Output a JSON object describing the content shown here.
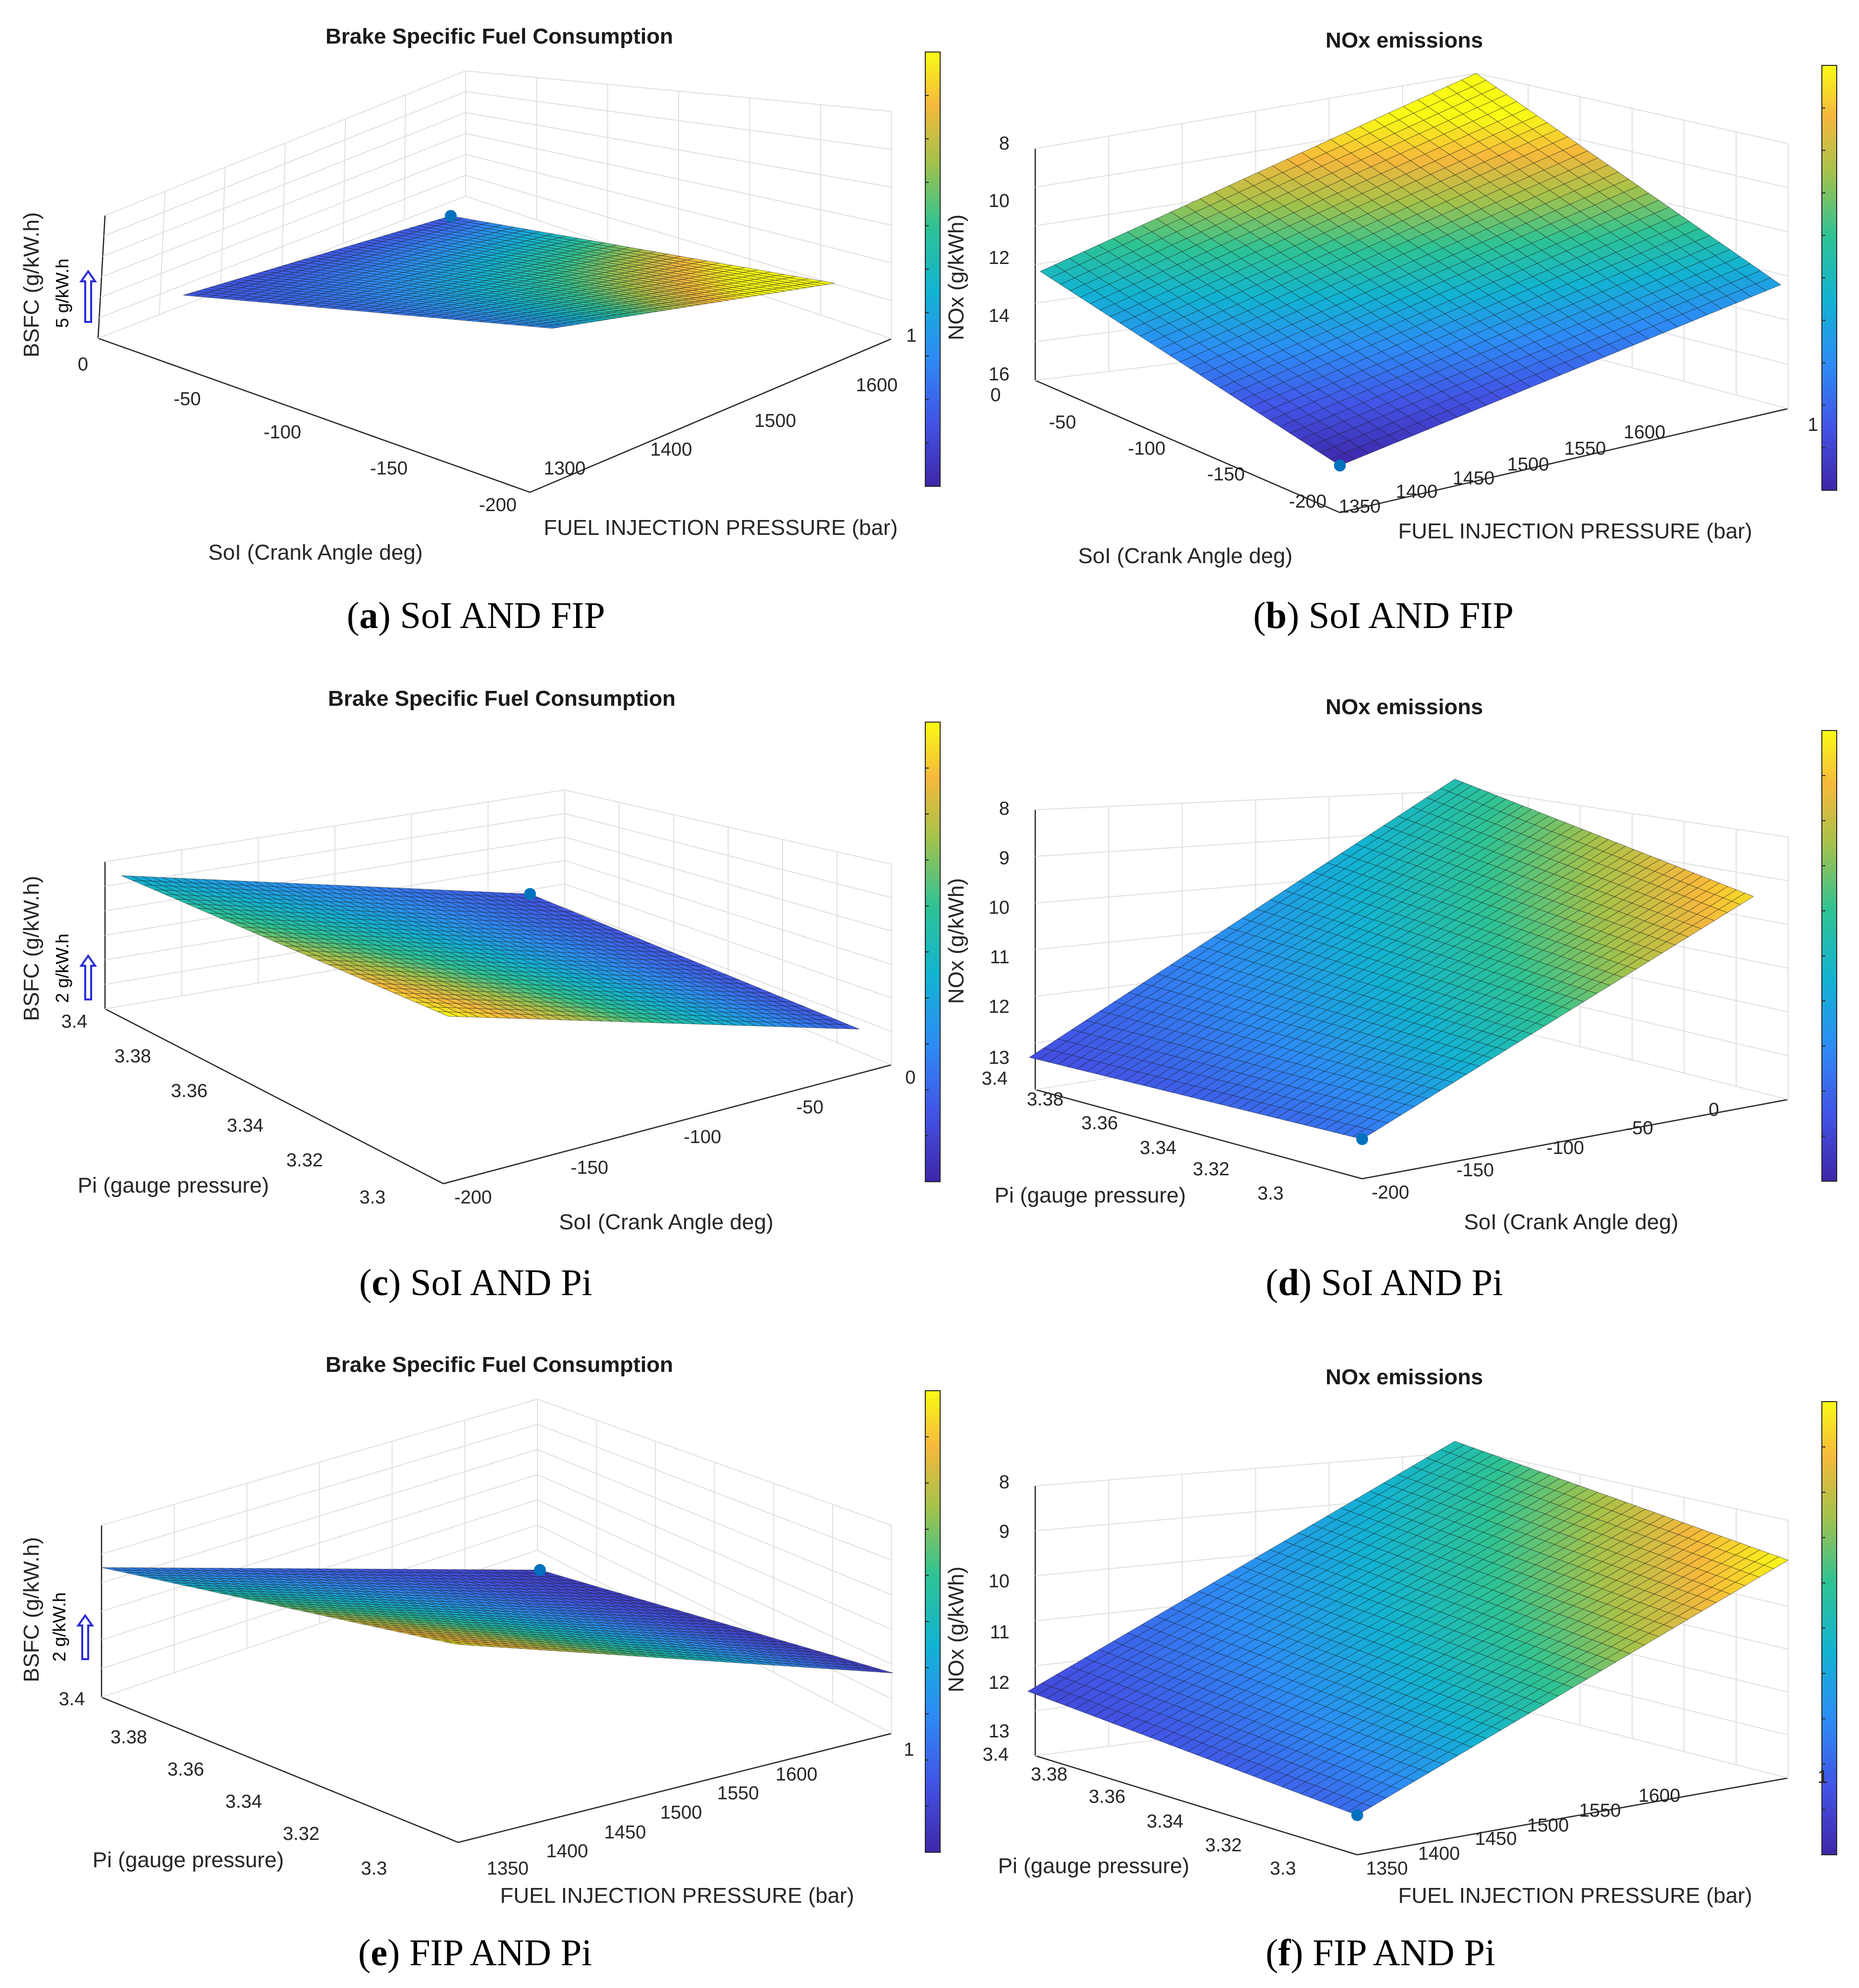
{
  "chart_data": [
    {
      "id": "a",
      "type": "surface3d",
      "title": "Brake Specific Fuel Consumption",
      "xlabel": "SoI (Crank Angle deg)",
      "ylabel": "FUEL INJECTION PRESSURE (bar)",
      "zlabel": "BSFC (g/kW.h)",
      "scale_bar": "5 g/kW.h",
      "z_ticks": [
        "0"
      ],
      "x_ticks": [
        "-50",
        "-100",
        "-150",
        "-200"
      ],
      "y_ticks": [
        "1300",
        "1400",
        "1500",
        "1600",
        "1"
      ],
      "caption_letter": "a",
      "caption_text": "SoI AND FIP",
      "colormap": [
        "#3e26a8",
        "#4254e6",
        "#2d8cf5",
        "#12b3d2",
        "#2ec394",
        "#a6c24a",
        "#f6b83c",
        "#f9fb15"
      ]
    },
    {
      "id": "b",
      "type": "surface3d",
      "title": "NOx emissions",
      "xlabel": "SoI (Crank Angle deg)",
      "ylabel": "FUEL INJECTION PRESSURE (bar)",
      "zlabel": "NOx (g/kWh)",
      "z_ticks": [
        "8",
        "10",
        "12",
        "14",
        "16"
      ],
      "x_ticks": [
        "0",
        "-50",
        "-100",
        "-150",
        "-200"
      ],
      "y_ticks": [
        "1350",
        "1400",
        "1450",
        "1500",
        "1550",
        "1600",
        "1"
      ],
      "caption_letter": "b",
      "caption_text": "SoI AND FIP"
    },
    {
      "id": "c",
      "type": "surface3d",
      "title": "Brake Specific Fuel Consumption",
      "xlabel": "Pi (gauge pressure)",
      "ylabel": "SoI (Crank Angle deg)",
      "zlabel": "BSFC (g/kW.h)",
      "scale_bar": "2 g/kW.h",
      "x_ticks": [
        "3.4",
        "3.38",
        "3.36",
        "3.34",
        "3.32",
        "3.3"
      ],
      "y_ticks": [
        "-200",
        "-150",
        "-100",
        "-50",
        "0"
      ],
      "caption_letter": "c",
      "caption_text": "SoI AND Pi"
    },
    {
      "id": "d",
      "type": "surface3d",
      "title": "NOx emissions",
      "xlabel": "Pi (gauge pressure)",
      "ylabel": "SoI (Crank Angle deg)",
      "zlabel": "NOx (g/kWh)",
      "z_ticks": [
        "8",
        "9",
        "10",
        "11",
        "12",
        "13"
      ],
      "x_ticks": [
        "3.4",
        "3.38",
        "3.36",
        "3.34",
        "3.32",
        "3.3"
      ],
      "y_ticks": [
        "-200",
        "-150",
        "-100",
        "-50",
        "0"
      ],
      "caption_letter": "d",
      "caption_text": "SoI AND Pi"
    },
    {
      "id": "e",
      "type": "surface3d",
      "title": "Brake Specific Fuel Consumption",
      "xlabel": "Pi (gauge pressure)",
      "ylabel": "FUEL INJECTION PRESSURE (bar)",
      "zlabel": "BSFC (g/kW.h)",
      "scale_bar": "2 g/kW.h",
      "x_ticks": [
        "3.4",
        "3.38",
        "3.36",
        "3.34",
        "3.32",
        "3.3"
      ],
      "y_ticks": [
        "1350",
        "1400",
        "1450",
        "1500",
        "1550",
        "1600",
        "1"
      ],
      "caption_letter": "e",
      "caption_text": "FIP AND Pi"
    },
    {
      "id": "f",
      "type": "surface3d",
      "title": "NOx emissions",
      "xlabel": "Pi (gauge pressure)",
      "ylabel": "FUEL INJECTION PRESSURE (bar)",
      "zlabel": "NOx (g/kWh)",
      "z_ticks": [
        "8",
        "9",
        "10",
        "11",
        "12",
        "13"
      ],
      "x_ticks": [
        "3.4",
        "3.38",
        "3.36",
        "3.34",
        "3.32",
        "3.3"
      ],
      "y_ticks": [
        "1350",
        "1400",
        "1450",
        "1500",
        "1550",
        "1600",
        "1"
      ],
      "caption_letter": "f",
      "caption_text": "FIP AND Pi"
    }
  ],
  "colors": {
    "marker": "#0072bd",
    "scale_arrow": "#2b2bd6"
  }
}
